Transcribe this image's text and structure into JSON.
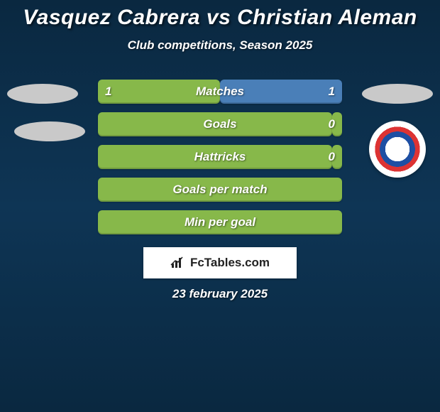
{
  "title": "Vasquez Cabrera vs Christian Aleman",
  "subtitle": "Club competitions, Season 2025",
  "date": "23 february 2025",
  "branding": "FcTables.com",
  "colors": {
    "bar_green": "#87b84a",
    "bar_blue": "#4a7fb8",
    "background": "#0e3555",
    "ellipse": "#c9c9c9",
    "white": "#ffffff"
  },
  "stats": [
    {
      "label": "Matches",
      "left_value": "1",
      "right_value": "1",
      "left_pct": 50,
      "right_pct": 50,
      "left_color": "#87b84a",
      "right_color": "#4a7fb8"
    },
    {
      "label": "Goals",
      "left_value": "",
      "right_value": "0",
      "left_pct": 96,
      "right_pct": 4,
      "left_color": "#87b84a",
      "right_color": "#87b84a"
    },
    {
      "label": "Hattricks",
      "left_value": "",
      "right_value": "0",
      "left_pct": 96,
      "right_pct": 4,
      "left_color": "#87b84a",
      "right_color": "#87b84a"
    },
    {
      "label": "Goals per match",
      "left_value": "",
      "right_value": "",
      "left_pct": 100,
      "right_pct": 0,
      "left_color": "#87b84a",
      "right_color": "#87b84a"
    },
    {
      "label": "Min per goal",
      "left_value": "",
      "right_value": "",
      "left_pct": 100,
      "right_pct": 0,
      "left_color": "#87b84a",
      "right_color": "#87b84a"
    }
  ],
  "badge": {
    "name": "club-badge",
    "colors": {
      "ring1": "#1e4fa3",
      "ring2": "#d33",
      "bg": "#ffffff"
    }
  }
}
